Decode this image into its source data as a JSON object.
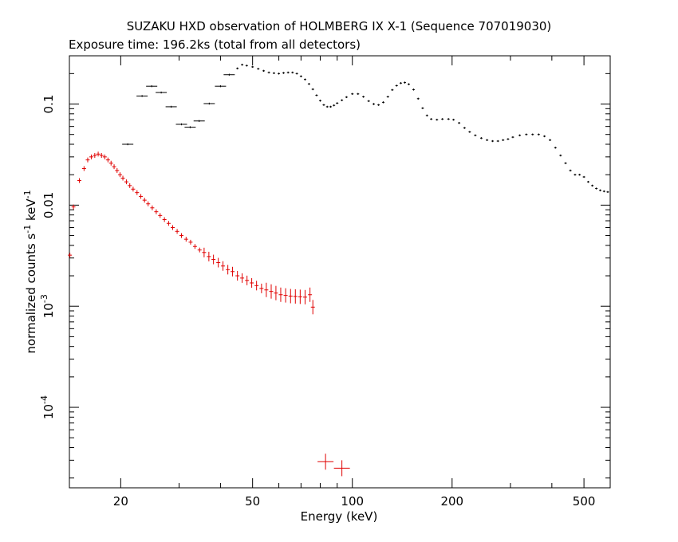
{
  "chart_data": {
    "type": "scatter",
    "title": "SUZAKU HXD observation of HOLMBERG IX X-1 (Sequence 707019030)",
    "subtitle": "Exposure time: 196.2ks (total from all detectors)",
    "xlabel": "Energy (keV)",
    "ylabel": "normalized counts s^-1 keV^-1",
    "xscale": "log",
    "yscale": "log",
    "xlim": [
      14,
      600
    ],
    "ylim": [
      1.6e-05,
      0.3
    ],
    "grid": false,
    "x_ticks": [
      {
        "value": 20,
        "label": "20"
      },
      {
        "value": 50,
        "label": "50"
      },
      {
        "value": 100,
        "label": "100"
      },
      {
        "value": 200,
        "label": "200"
      },
      {
        "value": 500,
        "label": "500"
      }
    ],
    "y_ticks": [
      {
        "value": 0.1,
        "label": "0.1"
      },
      {
        "value": 0.01,
        "label": "0.01"
      },
      {
        "value": 0.001,
        "label": "10^-3"
      },
      {
        "value": 0.0001,
        "label": "10^-4"
      }
    ],
    "series": [
      {
        "color": "#000000",
        "points": [
          [
            21,
            0.04
          ],
          [
            23.2,
            0.12
          ],
          [
            24.8,
            0.15
          ],
          [
            26.5,
            0.13
          ],
          [
            28.4,
            0.094
          ],
          [
            30.5,
            0.063
          ],
          [
            32.4,
            0.059
          ],
          [
            34.5,
            0.068
          ],
          [
            37,
            0.101
          ],
          [
            40,
            0.15
          ],
          [
            42.5,
            0.195
          ],
          [
            45,
            0.225
          ],
          [
            46.5,
            0.245
          ],
          [
            48,
            0.24
          ],
          [
            50,
            0.233
          ],
          [
            52,
            0.223
          ],
          [
            54,
            0.213
          ],
          [
            56,
            0.205
          ],
          [
            58,
            0.202
          ],
          [
            60,
            0.2
          ],
          [
            62,
            0.203
          ],
          [
            64,
            0.205
          ],
          [
            66,
            0.205
          ],
          [
            68,
            0.2
          ],
          [
            70,
            0.188
          ],
          [
            72,
            0.175
          ],
          [
            74,
            0.158
          ],
          [
            76,
            0.14
          ],
          [
            78,
            0.122
          ],
          [
            80,
            0.108
          ],
          [
            82,
            0.098
          ],
          [
            84,
            0.094
          ],
          [
            86,
            0.094
          ],
          [
            88,
            0.097
          ],
          [
            90,
            0.102
          ],
          [
            93,
            0.109
          ],
          [
            96,
            0.117
          ],
          [
            100,
            0.126
          ],
          [
            104,
            0.126
          ],
          [
            108,
            0.118
          ],
          [
            112,
            0.107
          ],
          [
            116,
            0.1
          ],
          [
            120,
            0.098
          ],
          [
            124,
            0.104
          ],
          [
            128,
            0.118
          ],
          [
            132,
            0.138
          ],
          [
            136,
            0.152
          ],
          [
            140,
            0.161
          ],
          [
            144,
            0.163
          ],
          [
            148,
            0.157
          ],
          [
            153,
            0.139
          ],
          [
            158,
            0.113
          ],
          [
            163,
            0.091
          ],
          [
            168,
            0.077
          ],
          [
            173,
            0.071
          ],
          [
            180,
            0.07
          ],
          [
            187,
            0.071
          ],
          [
            195,
            0.071
          ],
          [
            202,
            0.07
          ],
          [
            210,
            0.065
          ],
          [
            218,
            0.058
          ],
          [
            226,
            0.053
          ],
          [
            235,
            0.049
          ],
          [
            245,
            0.046
          ],
          [
            255,
            0.044
          ],
          [
            265,
            0.043
          ],
          [
            275,
            0.043
          ],
          [
            285,
            0.044
          ],
          [
            295,
            0.045
          ],
          [
            305,
            0.047
          ],
          [
            320,
            0.049
          ],
          [
            335,
            0.05
          ],
          [
            350,
            0.05
          ],
          [
            365,
            0.05
          ],
          [
            380,
            0.048
          ],
          [
            395,
            0.044
          ],
          [
            410,
            0.037
          ],
          [
            425,
            0.031
          ],
          [
            440,
            0.026
          ],
          [
            455,
            0.022
          ],
          [
            470,
            0.02
          ],
          [
            485,
            0.02
          ],
          [
            500,
            0.019
          ],
          [
            515,
            0.017
          ],
          [
            530,
            0.0156
          ],
          [
            545,
            0.0146
          ],
          [
            560,
            0.014
          ],
          [
            575,
            0.0137
          ],
          [
            590,
            0.0135
          ]
        ]
      },
      {
        "color": "#e00000",
        "points": [
          [
            14.05,
            0.0032
          ],
          [
            14.4,
            0.0096
          ],
          [
            15.0,
            0.0175
          ],
          [
            15.5,
            0.023
          ],
          [
            15.9,
            0.028
          ],
          [
            16.3,
            0.03
          ],
          [
            16.7,
            0.031
          ],
          [
            17.1,
            0.032
          ],
          [
            17.5,
            0.031
          ],
          [
            17.9,
            0.03
          ],
          [
            18.3,
            0.028
          ],
          [
            18.7,
            0.026
          ],
          [
            19.1,
            0.024
          ],
          [
            19.5,
            0.022
          ],
          [
            19.9,
            0.02
          ],
          [
            20.3,
            0.0185
          ],
          [
            20.8,
            0.017
          ],
          [
            21.3,
            0.0156
          ],
          [
            21.8,
            0.0144
          ],
          [
            22.4,
            0.0133
          ],
          [
            23.0,
            0.0122
          ],
          [
            23.6,
            0.0112
          ],
          [
            24.2,
            0.0103
          ],
          [
            24.9,
            0.0094
          ],
          [
            25.6,
            0.0086
          ],
          [
            26.3,
            0.0079
          ],
          [
            27.1,
            0.0072
          ],
          [
            27.9,
            0.0066
          ],
          [
            28.7,
            0.006
          ],
          [
            29.6,
            0.0055
          ],
          [
            30.5,
            0.005
          ],
          [
            31.5,
            0.0046
          ],
          [
            32.5,
            0.0043
          ],
          [
            33.5,
            0.0039
          ],
          [
            34.6,
            0.0036
          ],
          [
            35.7,
            0.0034
          ],
          [
            36.9,
            0.0031
          ],
          [
            38.1,
            0.0029
          ],
          [
            39.4,
            0.0027
          ],
          [
            40.7,
            0.0025
          ],
          [
            42.1,
            0.0023
          ],
          [
            43.5,
            0.0022
          ],
          [
            45.0,
            0.002
          ],
          [
            46.5,
            0.0019
          ],
          [
            48.1,
            0.0018
          ],
          [
            49.7,
            0.0017
          ],
          [
            51.4,
            0.0016
          ],
          [
            53.2,
            0.0015
          ],
          [
            55.0,
            0.00145
          ],
          [
            56.9,
            0.0014
          ],
          [
            58.8,
            0.00135
          ],
          [
            60.8,
            0.0013
          ],
          [
            62.9,
            0.00128
          ],
          [
            65.1,
            0.00126
          ],
          [
            67.3,
            0.00125
          ],
          [
            69.6,
            0.00124
          ],
          [
            72.0,
            0.00123
          ],
          [
            74.5,
            0.0013
          ],
          [
            76,
            0.00098
          ],
          [
            83,
            2.9e-05
          ],
          [
            93,
            2.5e-05
          ]
        ]
      }
    ]
  }
}
